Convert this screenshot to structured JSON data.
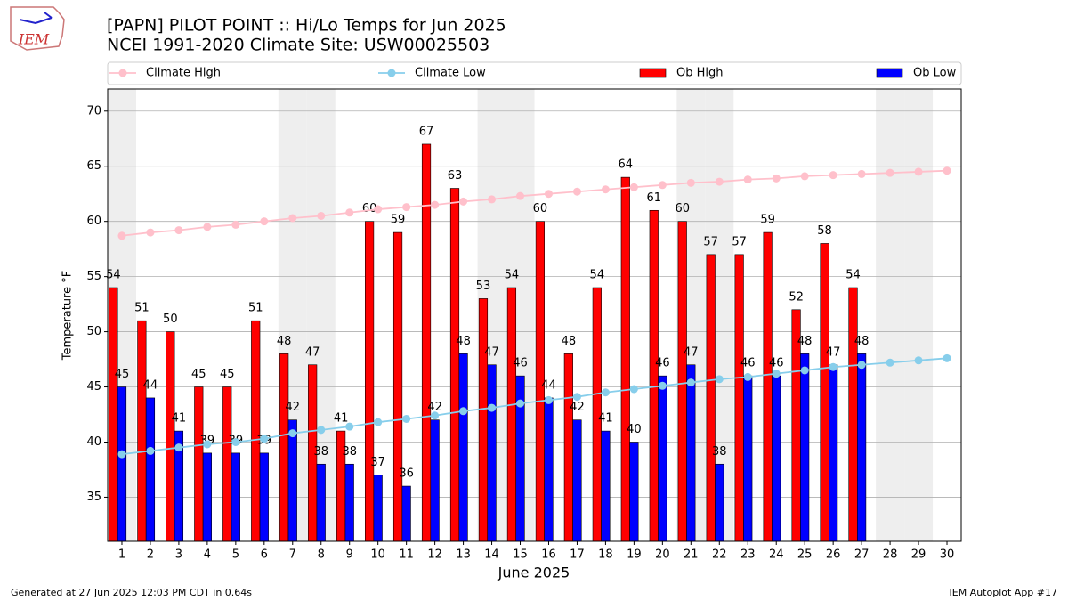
{
  "chart_data": {
    "type": "bar_line",
    "title": "[PAPN] PILOT POINT :: Hi/Lo Temps for Jun 2025",
    "subtitle": "NCEI 1991-2020 Climate Site: USW00025503",
    "logo_text": "IEM",
    "x_label": "June 2025",
    "y_label": "Temperature °F",
    "footer_left": "Generated at 27 Jun 2025 12:03 PM CDT in 0.64s",
    "footer_right": "IEM Autoplot App #17",
    "x": [
      1,
      2,
      3,
      4,
      5,
      6,
      7,
      8,
      9,
      10,
      11,
      12,
      13,
      14,
      15,
      16,
      17,
      18,
      19,
      20,
      21,
      22,
      23,
      24,
      25,
      26,
      27,
      28,
      29,
      30
    ],
    "xlim": [
      0.5,
      30.5
    ],
    "xticks": [
      1,
      2,
      3,
      4,
      5,
      6,
      7,
      8,
      9,
      10,
      11,
      12,
      13,
      14,
      15,
      16,
      17,
      18,
      19,
      20,
      21,
      22,
      23,
      24,
      25,
      26,
      27,
      28,
      29,
      30
    ],
    "ylim": [
      31,
      72
    ],
    "yticks": [
      35,
      40,
      45,
      50,
      55,
      60,
      65,
      70
    ],
    "grid": true,
    "shaded_days": [
      1,
      7,
      8,
      14,
      15,
      21,
      22,
      28,
      29
    ],
    "series": [
      {
        "name": "Climate High",
        "kind": "line",
        "color": "#ffc0cb",
        "values": [
          58.7,
          59.0,
          59.2,
          59.5,
          59.7,
          60.0,
          60.3,
          60.5,
          60.8,
          61.1,
          61.3,
          61.5,
          61.8,
          62.0,
          62.3,
          62.5,
          62.7,
          62.9,
          63.1,
          63.3,
          63.5,
          63.6,
          63.8,
          63.9,
          64.1,
          64.2,
          64.3,
          64.4,
          64.5,
          64.6
        ]
      },
      {
        "name": "Climate Low",
        "kind": "line",
        "color": "#87ceeb",
        "values": [
          38.9,
          39.2,
          39.5,
          39.8,
          40.0,
          40.3,
          40.8,
          41.1,
          41.4,
          41.8,
          42.1,
          42.4,
          42.8,
          43.1,
          43.5,
          43.8,
          44.1,
          44.5,
          44.8,
          45.1,
          45.4,
          45.7,
          45.9,
          46.2,
          46.5,
          46.8,
          47.0,
          47.2,
          47.4,
          47.6
        ]
      },
      {
        "name": "Ob High",
        "kind": "bar",
        "color": "#ff0000",
        "values": [
          54,
          51,
          50,
          45,
          45,
          51,
          48,
          47,
          41,
          60,
          59,
          67,
          63,
          53,
          54,
          60,
          48,
          54,
          64,
          61,
          60,
          57,
          57,
          59,
          52,
          58,
          54,
          null,
          null,
          null
        ]
      },
      {
        "name": "Ob Low",
        "kind": "bar",
        "color": "#0000ff",
        "values": [
          45,
          44,
          41,
          39,
          39,
          39,
          42,
          38,
          38,
          37,
          36,
          42,
          48,
          47,
          46,
          44,
          42,
          41,
          40,
          46,
          47,
          38,
          46,
          46,
          48,
          47,
          48,
          null,
          null,
          null
        ]
      }
    ]
  }
}
